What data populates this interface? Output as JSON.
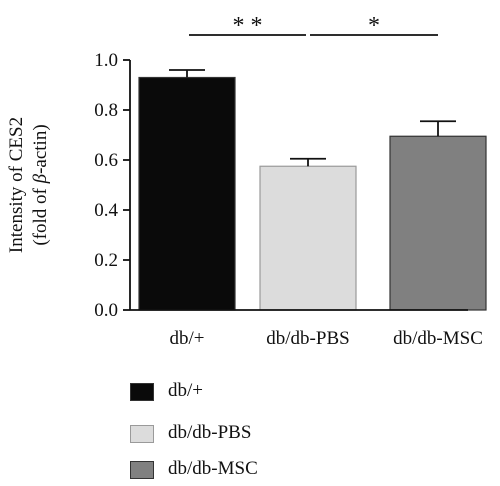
{
  "chart_data": {
    "type": "bar",
    "categories": [
      "db/+",
      "db/db-PBS",
      "db/db-MSC"
    ],
    "values": [
      0.93,
      0.575,
      0.695
    ],
    "errors": [
      0.03,
      0.03,
      0.06
    ],
    "colors": [
      "#0a0a0a",
      "#dcdcdc",
      "#808080"
    ],
    "ylabel_line1": "Intensity of CES2",
    "ylabel_line2_prefix": "(fold of ",
    "ylabel_line2_greek": "β",
    "ylabel_line2_suffix": "-actin)",
    "ylim": [
      0.0,
      1.0
    ],
    "yticks": [
      "0.0",
      "0.2",
      "0.4",
      "0.6",
      "0.8",
      "1.0"
    ],
    "significance": [
      {
        "from": 0,
        "to": 1,
        "label": "* *"
      },
      {
        "from": 1,
        "to": 2,
        "label": "*"
      }
    ],
    "legend": [
      {
        "label": "db/+",
        "color": "#0a0a0a"
      },
      {
        "label": "db/db-PBS",
        "color": "#dcdcdc"
      },
      {
        "label": "db/db-MSC",
        "color": "#808080"
      }
    ],
    "legend_position": "bottom-left",
    "grid": false
  }
}
